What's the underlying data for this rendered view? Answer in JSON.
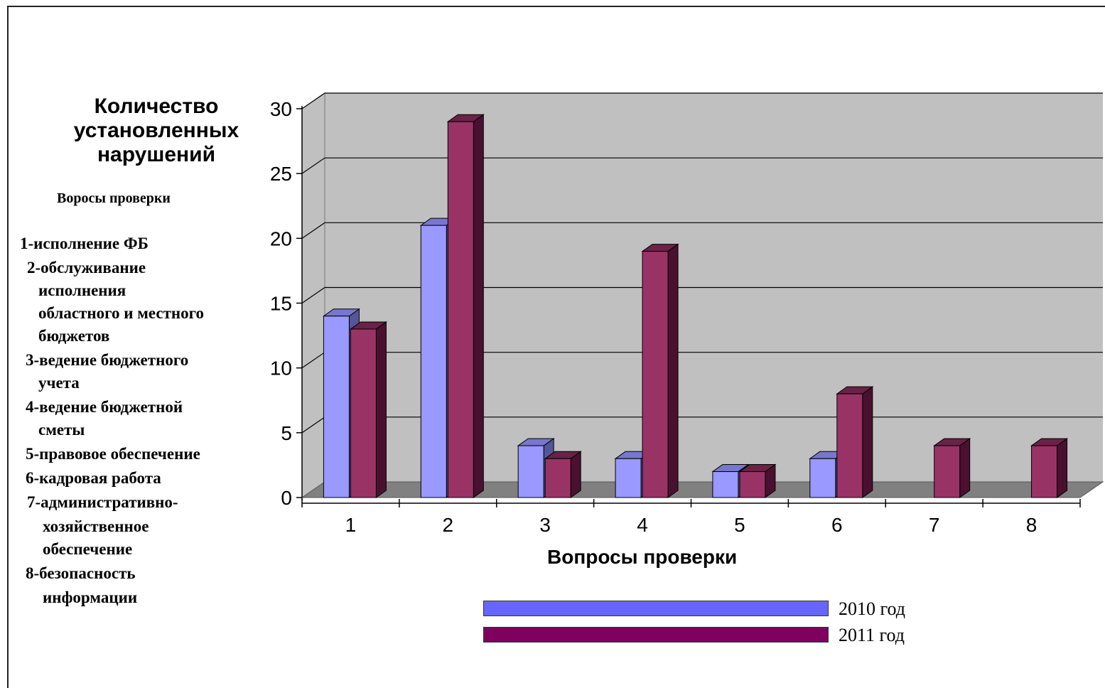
{
  "chart_data": {
    "type": "bar",
    "title": "",
    "ylabel": "Количество установленных нарушений",
    "xlabel": "Вопросы проверки",
    "categories": [
      "1",
      "2",
      "3",
      "4",
      "5",
      "6",
      "7",
      "8"
    ],
    "series": [
      {
        "name": "2010 год",
        "values": [
          14,
          21,
          4,
          3,
          2,
          3,
          0,
          0
        ]
      },
      {
        "name": "2011 год",
        "values": [
          13,
          29,
          3,
          19,
          2,
          8,
          4,
          4
        ]
      }
    ],
    "ylim": [
      0,
      30
    ],
    "yticks": [
      "0",
      "5",
      "10",
      "15",
      "20",
      "25",
      "30"
    ],
    "grid": true,
    "legend": "bottom",
    "colors": {
      "series2010": "#9999ff",
      "series2011": "#993366",
      "plot_background": "#c0c0c0",
      "floor": "#808080"
    }
  },
  "description": {
    "heading": "Воросы проверки",
    "lines": [
      "1-исполнение ФБ",
      "2-обслуживание",
      "исполнения",
      "областного и местного",
      "бюджетов",
      "3-ведение бюджетного",
      "учета",
      "4-ведение бюджетной",
      "сметы",
      "5-правовое обеспечение",
      "6-кадровая работа",
      "7-административно-",
      "хозяйственное",
      "обеспечение",
      "8-безопасность",
      "информации"
    ]
  },
  "legend": {
    "item2010": "2010 год",
    "item2011": "2011 год",
    "color2010": "#6666ff",
    "color2011": "#800060"
  }
}
